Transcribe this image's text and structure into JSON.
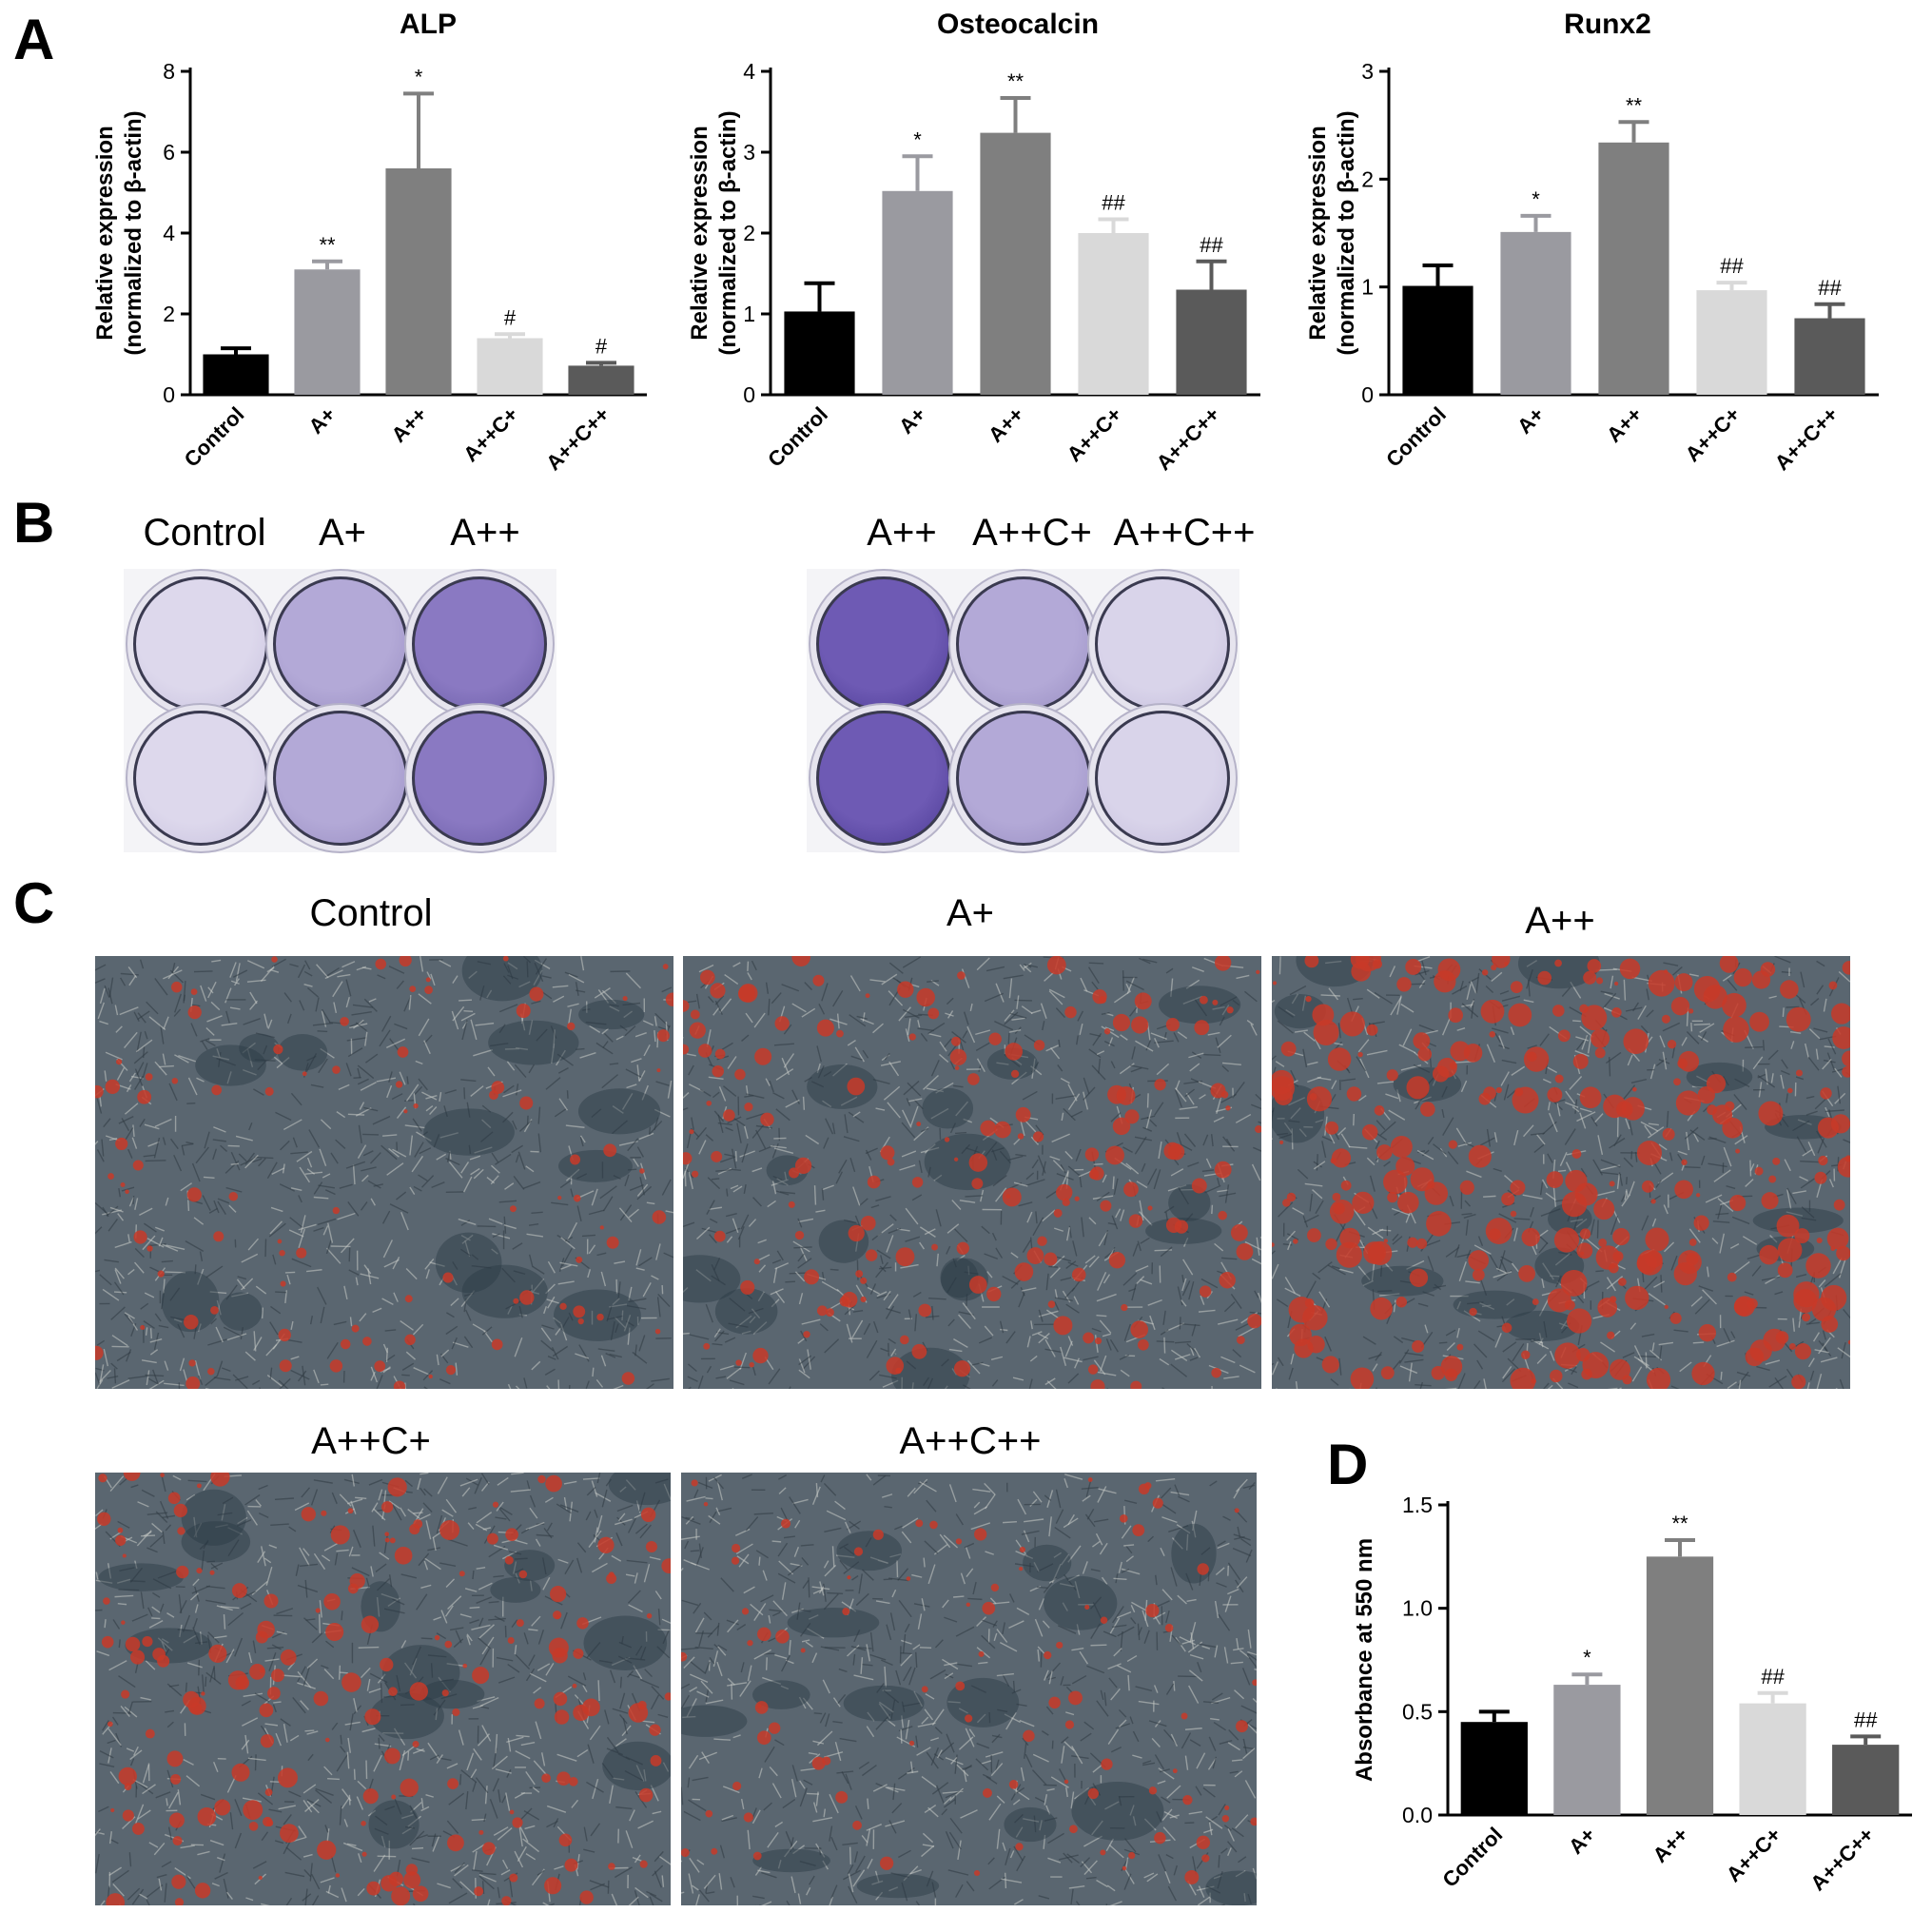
{
  "panel_letters": {
    "a": "A",
    "b": "B",
    "c": "C",
    "d": "D"
  },
  "colors": {
    "bars": [
      "#000000",
      "#9a9aa0",
      "#7f7f7f",
      "#d9d9d9",
      "#5a5a5a"
    ],
    "stain_alp": "#6e5ab4",
    "stain_alizarin": "#c83a28",
    "cell_background": "#5a6670"
  },
  "chart_data": [
    {
      "type": "bar",
      "title": "ALP",
      "ylabel_line1": "Relative expression",
      "ylabel_line2": "(normalized to β-actin)",
      "categories": [
        "Control",
        "A+",
        "A++",
        "A++C+",
        "A++C++"
      ],
      "values": [
        1.0,
        3.1,
        5.6,
        1.4,
        0.72
      ],
      "errors": [
        0.15,
        0.2,
        1.85,
        0.1,
        0.07
      ],
      "annotations": [
        "",
        "**",
        "*",
        "#",
        "#"
      ],
      "ylim": [
        0,
        8
      ],
      "yticks": [
        "0",
        "2",
        "4",
        "6",
        "8"
      ],
      "ytick_values": [
        0,
        2,
        4,
        6,
        8
      ]
    },
    {
      "type": "bar",
      "title": "Osteocalcin",
      "ylabel_line1": "Relative expression",
      "ylabel_line2": "(normalized to β-actin)",
      "categories": [
        "Control",
        "A+",
        "A++",
        "A++C+",
        "A++C++"
      ],
      "values": [
        1.03,
        2.52,
        3.24,
        2.0,
        1.3
      ],
      "errors": [
        0.35,
        0.43,
        0.43,
        0.17,
        0.35
      ],
      "annotations": [
        "",
        "*",
        "**",
        "##",
        "##"
      ],
      "ylim": [
        0,
        4
      ],
      "yticks": [
        "0",
        "1",
        "2",
        "3",
        "4"
      ],
      "ytick_values": [
        0,
        1,
        2,
        3,
        4
      ]
    },
    {
      "type": "bar",
      "title": "Runx2",
      "ylabel_line1": "Relative expression",
      "ylabel_line2": "(normalized to β-actin)",
      "categories": [
        "Control",
        "A+",
        "A++",
        "A++C+",
        "A++C++"
      ],
      "values": [
        1.01,
        1.51,
        2.34,
        0.97,
        0.71
      ],
      "errors": [
        0.19,
        0.15,
        0.19,
        0.07,
        0.13
      ],
      "annotations": [
        "",
        "*",
        "**",
        "##",
        "##"
      ],
      "ylim": [
        0,
        3
      ],
      "yticks": [
        "0",
        "1",
        "2",
        "3"
      ],
      "ytick_values": [
        0,
        1,
        2,
        3
      ]
    },
    {
      "type": "bar",
      "title": "",
      "ylabel_line1": "Absorbance at 550 nm",
      "ylabel_line2": "",
      "categories": [
        "Control",
        "A+",
        "A++",
        "A++C+",
        "A++C++"
      ],
      "values": [
        0.45,
        0.63,
        1.25,
        0.54,
        0.34
      ],
      "errors": [
        0.05,
        0.05,
        0.08,
        0.05,
        0.04
      ],
      "annotations": [
        "",
        "*",
        "**",
        "##",
        "##"
      ],
      "ylim": [
        0,
        1.5
      ],
      "yticks": [
        "0.0",
        "0.5",
        "1.0",
        "1.5"
      ],
      "ytick_values": [
        0,
        0.5,
        1.0,
        1.5
      ]
    }
  ],
  "panel_b": {
    "plate1_labels": [
      "Control",
      "A+",
      "A++"
    ],
    "plate2_labels": [
      "A++",
      "A++C+",
      "A++C++"
    ],
    "plate1_stain_intensity": [
      0.12,
      0.45,
      0.78
    ],
    "plate2_stain_intensity": [
      1.0,
      0.45,
      0.15
    ]
  },
  "panel_c": {
    "labels": [
      "Control",
      "A+",
      "A++",
      "A++C+",
      "A++C++"
    ],
    "stain_density": [
      0.2,
      0.45,
      0.9,
      0.5,
      0.18
    ]
  }
}
